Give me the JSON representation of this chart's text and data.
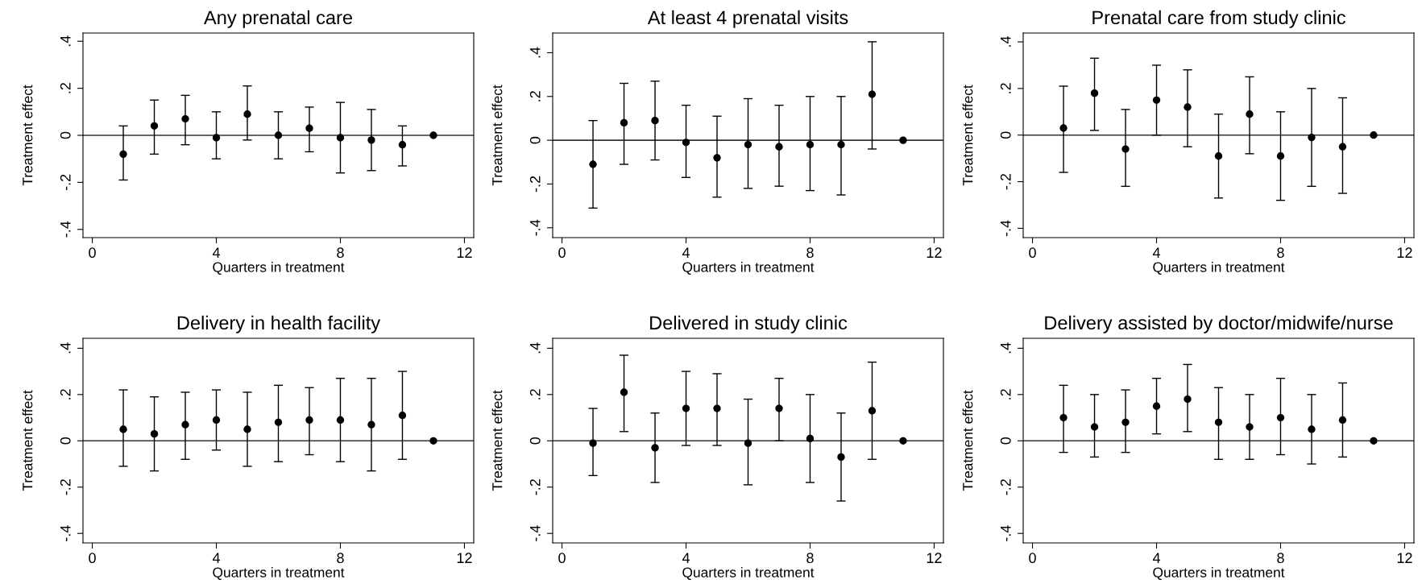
{
  "chart_data": [
    {
      "type": "scatter",
      "title": "Any prenatal care",
      "xlabel": "Quarters in treatment",
      "ylabel": "Treatment effect",
      "x": [
        1,
        2,
        3,
        4,
        5,
        6,
        7,
        8,
        9,
        10,
        11
      ],
      "xlim": [
        -0.3,
        12.3
      ],
      "xticks": [
        0,
        4,
        8,
        12
      ],
      "ylim": [
        -0.435,
        0.435
      ],
      "yticks": [
        {
          "value": -0.4,
          "label": "-.4"
        },
        {
          "value": -0.2,
          "label": "-.2"
        },
        0,
        {
          "value": 0.2,
          "label": ".2"
        },
        {
          "value": 0.4,
          "label": ".4"
        }
      ],
      "marker": "circle",
      "ref_lines": [
        {
          "axis": "y",
          "value": 0
        }
      ],
      "series": [
        {
          "color": "#000000",
          "values": [
            -0.08,
            0.04,
            0.07,
            -0.01,
            0.09,
            0.0,
            0.03,
            -0.01,
            -0.02,
            -0.04,
            0
          ],
          "errors": [
            [
              -0.19,
              0.04
            ],
            [
              -0.08,
              0.15
            ],
            [
              -0.04,
              0.17
            ],
            [
              -0.1,
              0.1
            ],
            [
              -0.02,
              0.21
            ],
            [
              -0.1,
              0.1
            ],
            [
              -0.07,
              0.12
            ],
            [
              -0.16,
              0.14
            ],
            [
              -0.15,
              0.11
            ],
            [
              -0.13,
              0.04
            ],
            null
          ]
        }
      ]
    },
    {
      "type": "scatter",
      "title": "At least 4 prenatal visits",
      "xlabel": "Quarters in treatment",
      "ylabel": "Treatment effect",
      "x": [
        1,
        2,
        3,
        4,
        5,
        6,
        7,
        8,
        9,
        10,
        11
      ],
      "xlim": [
        -0.3,
        12.3
      ],
      "xticks": [
        0,
        4,
        8,
        12
      ],
      "ylim": [
        -0.445,
        0.49
      ],
      "yticks": [
        {
          "value": -0.4,
          "label": "-.4"
        },
        {
          "value": -0.2,
          "label": "-.2"
        },
        0,
        {
          "value": 0.2,
          "label": ".2"
        },
        {
          "value": 0.4,
          "label": ".4"
        }
      ],
      "marker": "circle",
      "ref_lines": [
        {
          "axis": "y",
          "value": 0
        }
      ],
      "series": [
        {
          "color": "#000000",
          "values": [
            -0.11,
            0.08,
            0.09,
            -0.01,
            -0.08,
            -0.02,
            -0.03,
            -0.02,
            -0.02,
            0.21,
            0
          ],
          "errors": [
            [
              -0.31,
              0.09
            ],
            [
              -0.11,
              0.26
            ],
            [
              -0.09,
              0.27
            ],
            [
              -0.17,
              0.16
            ],
            [
              -0.26,
              0.11
            ],
            [
              -0.22,
              0.19
            ],
            [
              -0.21,
              0.16
            ],
            [
              -0.23,
              0.2
            ],
            [
              -0.25,
              0.2
            ],
            [
              -0.04,
              0.45
            ],
            null
          ]
        }
      ]
    },
    {
      "type": "scatter",
      "title": "Prenatal care from study clinic",
      "xlabel": "Quarters in treatment",
      "ylabel": "Treatment effect",
      "x": [
        1,
        2,
        3,
        4,
        5,
        6,
        7,
        8,
        9,
        10,
        11
      ],
      "xlim": [
        -0.3,
        12.3
      ],
      "xticks": [
        0,
        4,
        8,
        12
      ],
      "ylim": [
        -0.44,
        0.438
      ],
      "yticks": [
        {
          "value": -0.4,
          "label": "-.4"
        },
        {
          "value": -0.2,
          "label": "-.2"
        },
        0,
        {
          "value": 0.2,
          "label": ".2"
        },
        {
          "value": 0.4,
          "label": ".4"
        }
      ],
      "marker": "circle",
      "ref_lines": [
        {
          "axis": "y",
          "value": 0
        }
      ],
      "series": [
        {
          "color": "#000000",
          "values": [
            0.03,
            0.18,
            -0.06,
            0.15,
            0.12,
            -0.09,
            0.09,
            -0.09,
            -0.01,
            -0.05,
            0
          ],
          "errors": [
            [
              -0.16,
              0.21
            ],
            [
              0.02,
              0.33
            ],
            [
              -0.22,
              0.11
            ],
            [
              0.0,
              0.3
            ],
            [
              -0.05,
              0.28
            ],
            [
              -0.27,
              0.09
            ],
            [
              -0.08,
              0.25
            ],
            [
              -0.28,
              0.1
            ],
            [
              -0.22,
              0.2
            ],
            [
              -0.25,
              0.16
            ],
            null
          ]
        }
      ]
    },
    {
      "type": "scatter",
      "title": "Delivery in health facility",
      "xlabel": "Quarters in treatment",
      "ylabel": "Treatment effect",
      "x": [
        1,
        2,
        3,
        4,
        5,
        6,
        7,
        8,
        9,
        10,
        11
      ],
      "xlim": [
        -0.3,
        12.3
      ],
      "xticks": [
        0,
        4,
        8,
        12
      ],
      "ylim": [
        -0.441,
        0.443
      ],
      "yticks": [
        {
          "value": -0.4,
          "label": "-.4"
        },
        {
          "value": -0.2,
          "label": "-.2"
        },
        0,
        {
          "value": 0.2,
          "label": ".2"
        },
        {
          "value": 0.4,
          "label": ".4"
        }
      ],
      "marker": "circle",
      "ref_lines": [
        {
          "axis": "y",
          "value": 0
        }
      ],
      "series": [
        {
          "color": "#000000",
          "values": [
            0.05,
            0.03,
            0.07,
            0.09,
            0.05,
            0.08,
            0.09,
            0.09,
            0.07,
            0.11,
            0
          ],
          "errors": [
            [
              -0.11,
              0.22
            ],
            [
              -0.13,
              0.19
            ],
            [
              -0.08,
              0.21
            ],
            [
              -0.04,
              0.22
            ],
            [
              -0.11,
              0.21
            ],
            [
              -0.09,
              0.24
            ],
            [
              -0.06,
              0.23
            ],
            [
              -0.09,
              0.27
            ],
            [
              -0.13,
              0.27
            ],
            [
              -0.08,
              0.3
            ],
            null
          ]
        }
      ]
    },
    {
      "type": "scatter",
      "title": "Delivered in study clinic",
      "xlabel": "Quarters in treatment",
      "ylabel": "Treatment effect",
      "x": [
        1,
        2,
        3,
        4,
        5,
        6,
        7,
        8,
        9,
        10,
        11
      ],
      "xlim": [
        -0.3,
        12.3
      ],
      "xticks": [
        0,
        4,
        8,
        12
      ],
      "ylim": [
        -0.441,
        0.443
      ],
      "yticks": [
        {
          "value": -0.4,
          "label": "-.4"
        },
        {
          "value": -0.2,
          "label": "-.2"
        },
        0,
        {
          "value": 0.2,
          "label": ".2"
        },
        {
          "value": 0.4,
          "label": ".4"
        }
      ],
      "marker": "circle",
      "ref_lines": [
        {
          "axis": "y",
          "value": 0
        }
      ],
      "series": [
        {
          "color": "#000000",
          "values": [
            -0.01,
            0.21,
            -0.03,
            0.14,
            0.14,
            -0.01,
            0.14,
            0.01,
            -0.07,
            0.13,
            0
          ],
          "errors": [
            [
              -0.15,
              0.14
            ],
            [
              0.04,
              0.37
            ],
            [
              -0.18,
              0.12
            ],
            [
              -0.02,
              0.3
            ],
            [
              -0.02,
              0.29
            ],
            [
              -0.19,
              0.18
            ],
            [
              0.0,
              0.27
            ],
            [
              -0.18,
              0.2
            ],
            [
              -0.26,
              0.12
            ],
            [
              -0.08,
              0.34
            ],
            null
          ]
        }
      ]
    },
    {
      "type": "scatter",
      "title": "Delivery assisted by doctor/midwife/nurse",
      "xlabel": "Quarters in treatment",
      "ylabel": "Treatment effect",
      "x": [
        1,
        2,
        3,
        4,
        5,
        6,
        7,
        8,
        9,
        10,
        11
      ],
      "xlim": [
        -0.3,
        12.3
      ],
      "xticks": [
        0,
        4,
        8,
        12
      ],
      "ylim": [
        -0.441,
        0.443
      ],
      "yticks": [
        {
          "value": -0.4,
          "label": "-.4"
        },
        {
          "value": -0.2,
          "label": "-.2"
        },
        0,
        {
          "value": 0.2,
          "label": ".2"
        },
        {
          "value": 0.4,
          "label": ".4"
        }
      ],
      "marker": "circle",
      "ref_lines": [
        {
          "axis": "y",
          "value": 0
        }
      ],
      "series": [
        {
          "color": "#000000",
          "values": [
            0.1,
            0.06,
            0.08,
            0.15,
            0.18,
            0.08,
            0.06,
            0.1,
            0.05,
            0.09,
            0
          ],
          "errors": [
            [
              -0.05,
              0.24
            ],
            [
              -0.07,
              0.2
            ],
            [
              -0.05,
              0.22
            ],
            [
              0.03,
              0.27
            ],
            [
              0.04,
              0.33
            ],
            [
              -0.08,
              0.23
            ],
            [
              -0.08,
              0.2
            ],
            [
              -0.06,
              0.27
            ],
            [
              -0.1,
              0.2
            ],
            [
              -0.07,
              0.25
            ],
            null
          ]
        }
      ]
    }
  ]
}
